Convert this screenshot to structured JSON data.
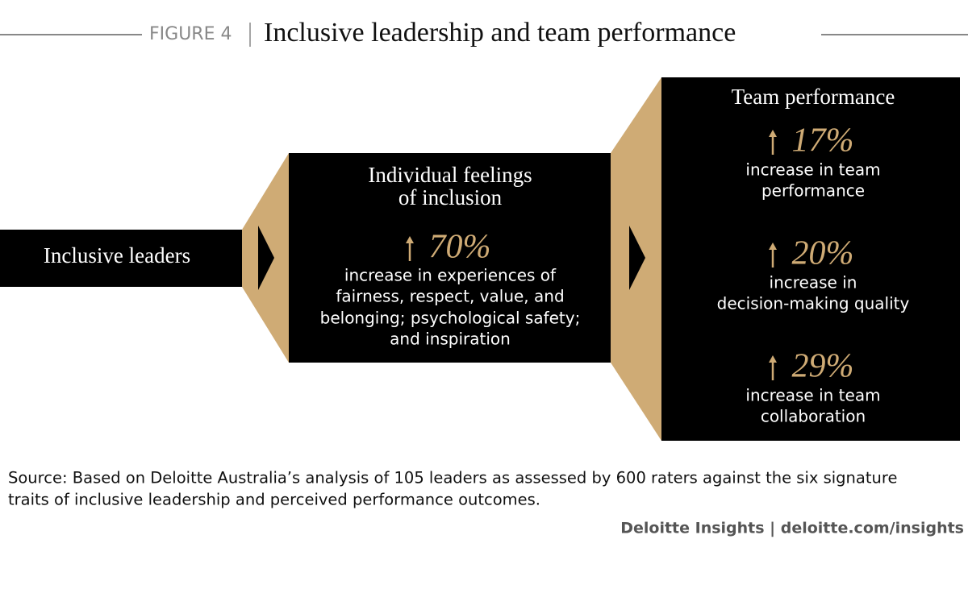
{
  "header": {
    "label": "FIGURE 4",
    "title": "Inclusive leadership and team performance"
  },
  "stages": [
    {
      "title": [
        "Inclusive leaders"
      ],
      "stats": []
    },
    {
      "title": [
        "Individual feelings",
        "of inclusion"
      ],
      "stats": [
        {
          "value": "70%",
          "text": [
            "increase in experiences of",
            "fairness, respect, value, and",
            "belonging; psychological safety;",
            "and inspiration"
          ]
        }
      ]
    },
    {
      "title": [
        "Team performance"
      ],
      "stats": [
        {
          "value": "17%",
          "text": [
            "increase in team",
            "performance"
          ]
        },
        {
          "value": "20%",
          "text": [
            "increase in",
            "decision-making quality"
          ]
        },
        {
          "value": "29%",
          "text": [
            "increase in team",
            "collaboration"
          ]
        }
      ]
    }
  ],
  "source": [
    "Source: Based on Deloitte Australia’s analysis of 105 leaders as assessed by 600 raters against the six signature",
    "traits of inclusive leadership and perceived performance outcomes."
  ],
  "credit": "Deloitte Insights | deloitte.com/insights"
}
